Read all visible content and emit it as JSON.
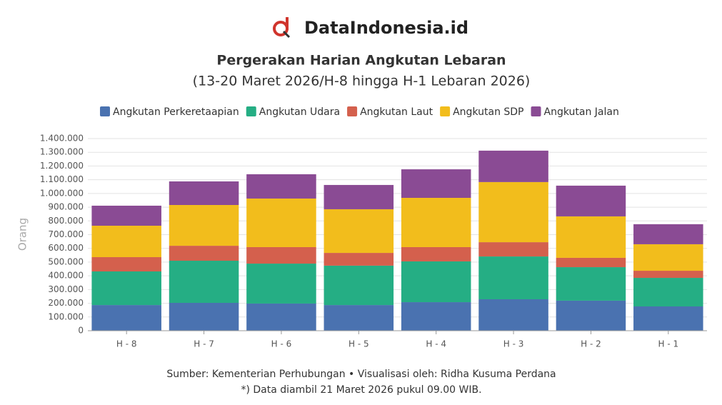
{
  "brand": "DataIndonesia.id",
  "chart_data": {
    "type": "stacked_bar",
    "title": "Pergerakan Harian Angkutan Lebaran",
    "subtitle": "(13-20 Maret 2026/H-8 hingga H-1 Lebaran 2026)",
    "y_label": "Orang",
    "categories": [
      "H - 8",
      "H - 7",
      "H - 6",
      "H - 5",
      "H - 4",
      "H - 3",
      "H - 2",
      "H - 1"
    ],
    "series": [
      {
        "name": "Angkutan Perkeretaapian",
        "color": "#4a72b0",
        "values": [
          187000,
          203000,
          198000,
          187000,
          208000,
          229000,
          219000,
          177000
        ]
      },
      {
        "name": "Angkutan Udara",
        "color": "#25ae84",
        "values": [
          245000,
          307000,
          291000,
          287000,
          297000,
          312000,
          244000,
          208000
        ]
      },
      {
        "name": "Angkutan Laut",
        "color": "#d4604d",
        "values": [
          104000,
          109000,
          120000,
          93000,
          104000,
          104000,
          68000,
          52000
        ]
      },
      {
        "name": "Angkutan SDP",
        "color": "#f2bd1c",
        "values": [
          229000,
          297000,
          354000,
          318000,
          359000,
          438000,
          302000,
          193000
        ]
      },
      {
        "name": "Angkutan Jalan",
        "color": "#8a4b94",
        "values": [
          146000,
          172000,
          177000,
          177000,
          208000,
          229000,
          224000,
          146000
        ]
      }
    ],
    "ylim": [
      0,
      1400000
    ],
    "yticks": [
      0,
      {
        "value": 100000,
        "label": "100.000"
      },
      {
        "value": 200000,
        "label": "200.000"
      },
      {
        "value": 300000,
        "label": "300.000"
      },
      {
        "value": 400000,
        "label": "400.000"
      },
      {
        "value": 500000,
        "label": "500.000"
      },
      {
        "value": 600000,
        "label": "600.000"
      },
      {
        "value": 700000,
        "label": "700.000"
      },
      {
        "value": 800000,
        "label": "800.000"
      },
      {
        "value": 900000,
        "label": "900.000"
      },
      {
        "value": 1000000,
        "label": "1.000.000"
      },
      {
        "value": 1100000,
        "label": "1.100.000"
      },
      {
        "value": 1200000,
        "label": "1.200.000"
      },
      {
        "value": 1300000,
        "label": "1.300.000"
      },
      {
        "value": 1400000,
        "label": "1.400.000"
      }
    ],
    "grid": true,
    "source": "Sumber: Kementerian Perhubungan • Visualisasi oleh: Ridha Kusuma Perdana",
    "note": "*) Data diambil 21 Maret 2026 pukul 09.00 WIB."
  }
}
